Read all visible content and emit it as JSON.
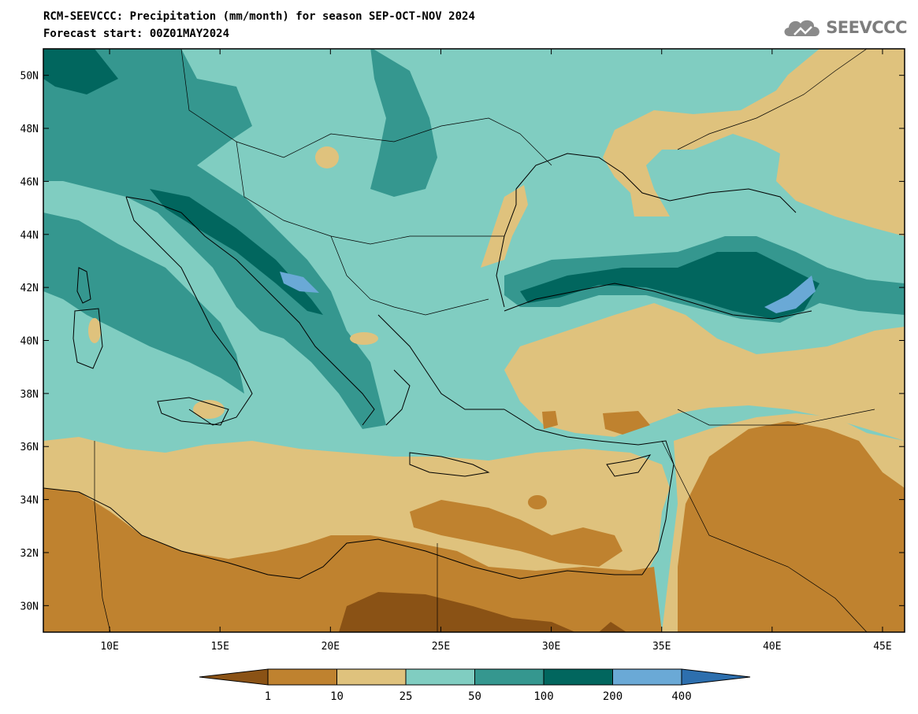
{
  "header": {
    "title_line1": "RCM-SEEVCCC: Precipitation (mm/month) for season SEP-OCT-NOV 2024",
    "title_line2": "Forecast start: 00Z01MAY2024"
  },
  "logo": {
    "text": "SEEVCCC",
    "icon": "cloud-icon"
  },
  "map": {
    "lon_range": [
      7,
      46
    ],
    "lat_range": [
      29,
      51
    ],
    "lat_ticks": [
      "50N",
      "48N",
      "46N",
      "44N",
      "42N",
      "40N",
      "38N",
      "36N",
      "34N",
      "32N",
      "30N"
    ],
    "lon_ticks": [
      "10E",
      "15E",
      "20E",
      "25E",
      "30E",
      "35E",
      "40E",
      "45E"
    ]
  },
  "colorbar": {
    "labels": [
      "1",
      "10",
      "25",
      "50",
      "100",
      "200",
      "400"
    ],
    "colors": [
      "#8a5215",
      "#bf822f",
      "#dfc27d",
      "#80cdc1",
      "#35978f",
      "#01665e",
      "#6aa9d6",
      "#2d6fae"
    ]
  }
}
